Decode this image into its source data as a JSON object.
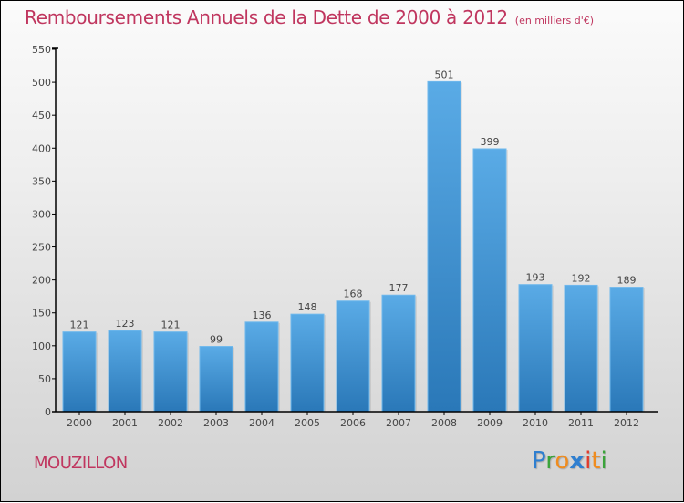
{
  "chart_data": {
    "type": "bar",
    "title": "Remboursements Annuels de la Dette de 2000 à 2012",
    "subtitle": "(en milliers d'€)",
    "xlabel": "",
    "ylabel": "",
    "categories": [
      "2000",
      "2001",
      "2002",
      "2003",
      "2004",
      "2005",
      "2006",
      "2007",
      "2008",
      "2009",
      "2010",
      "2011",
      "2012"
    ],
    "values": [
      121,
      123,
      121,
      99,
      136,
      148,
      168,
      177,
      501,
      399,
      193,
      192,
      189
    ],
    "ylim": [
      0,
      550
    ],
    "yticks": [
      0,
      50,
      100,
      150,
      200,
      250,
      300,
      350,
      400,
      450,
      500,
      550
    ],
    "grid": false,
    "legend": "none",
    "bar_color_top": "#5aabe6",
    "bar_color_bottom": "#2a78b8"
  },
  "header": {
    "title": "Remboursements Annuels de la Dette de 2000 à 2012",
    "subtitle": "(en milliers d'€)"
  },
  "footer": {
    "town": "MOUZILLON",
    "logo": {
      "letters": [
        {
          "ch": "P",
          "color": "#2f7fd0"
        },
        {
          "ch": "r",
          "color": "#3aa43a"
        },
        {
          "ch": "o",
          "color": "#f08c1e"
        },
        {
          "ch": "x",
          "color": "#2f7fd0"
        },
        {
          "ch": "i",
          "color": "#e23a2a"
        },
        {
          "ch": "t",
          "color": "#f08c1e"
        },
        {
          "ch": "i",
          "color": "#3aa43a"
        }
      ]
    }
  },
  "colors": {
    "title": "#c0365f",
    "axis": "#000000",
    "text": "#444444"
  }
}
